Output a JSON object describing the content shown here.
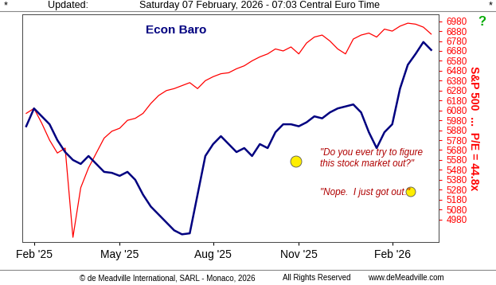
{
  "chart_data": {
    "type": "line",
    "title": "Econ Baro",
    "header": {
      "left_mark": "*",
      "label": "Updated:",
      "timestamp": "Saturday 07 February, 2026 - 07:03 Central Euro Time",
      "right_mark": "*"
    },
    "help_icon": "?",
    "y_label": "S&P 500  ...  P/E = 44.8x",
    "annotations": [
      "\"Do you ever try to figure\nthis stock market out?\"",
      "\"Nope.  I just got out.\""
    ],
    "footer": {
      "copyright": "© de Meadville International, SARL - Monaco, 2026",
      "rights": "All Rights Reserved",
      "website": "www.deMeadville.com"
    },
    "x": [
      0,
      1,
      2,
      3,
      4,
      5,
      6,
      7,
      8,
      9,
      10,
      11,
      12,
      13,
      14,
      15,
      16,
      17,
      18,
      19,
      20,
      21,
      22,
      23,
      24,
      25,
      26,
      27,
      28,
      29,
      30,
      31,
      32,
      33,
      34,
      35,
      36,
      37,
      38,
      39,
      40,
      41,
      42,
      43,
      44,
      45,
      46,
      47,
      48,
      49,
      50,
      51,
      52
    ],
    "series": [
      {
        "name": "Econ Baro",
        "color": "#000080",
        "line_style": "solid",
        "values": [
          5920,
          6100,
          6020,
          5940,
          5780,
          5660,
          5580,
          5540,
          5620,
          5540,
          5460,
          5450,
          5420,
          5460,
          5380,
          5230,
          5110,
          5030,
          4950,
          4870,
          4830,
          4840,
          5230,
          5620,
          5740,
          5820,
          5740,
          5660,
          5700,
          5620,
          5740,
          5700,
          5860,
          5940,
          5940,
          5920,
          5960,
          6020,
          6000,
          6060,
          6100,
          6120,
          6140,
          6060,
          5860,
          5700,
          5860,
          5940,
          6300,
          6540,
          6650,
          6770,
          6690
        ]
      },
      {
        "name": "S&P 500",
        "color": "#ff0000",
        "line_style": "solid",
        "values": [
          6050,
          6100,
          5950,
          5780,
          5650,
          5700,
          4800,
          5300,
          5500,
          5650,
          5800,
          5870,
          5900,
          5980,
          6000,
          6050,
          6150,
          6230,
          6280,
          6300,
          6330,
          6360,
          6300,
          6380,
          6420,
          6450,
          6460,
          6500,
          6530,
          6580,
          6620,
          6650,
          6700,
          6680,
          6720,
          6650,
          6760,
          6820,
          6840,
          6780,
          6700,
          6650,
          6800,
          6840,
          6860,
          6820,
          6900,
          6880,
          6930,
          6960,
          6950,
          6920,
          6850
        ]
      }
    ],
    "xlim": [
      -0.5,
      53
    ],
    "xticks": [
      {
        "value": 1,
        "label": "Feb '25"
      },
      {
        "value": 12,
        "label": "May '25"
      },
      {
        "value": 24,
        "label": "Aug '25"
      },
      {
        "value": 35,
        "label": "Nov '25"
      },
      {
        "value": 47,
        "label": "Feb '26"
      }
    ],
    "ylim": [
      4750,
      7050
    ],
    "yticks": [
      4980,
      5080,
      5180,
      5280,
      5380,
      5480,
      5580,
      5680,
      5780,
      5880,
      5980,
      6080,
      6180,
      6280,
      6380,
      6480,
      6580,
      6680,
      6780,
      6880,
      6980
    ],
    "grid": false
  }
}
